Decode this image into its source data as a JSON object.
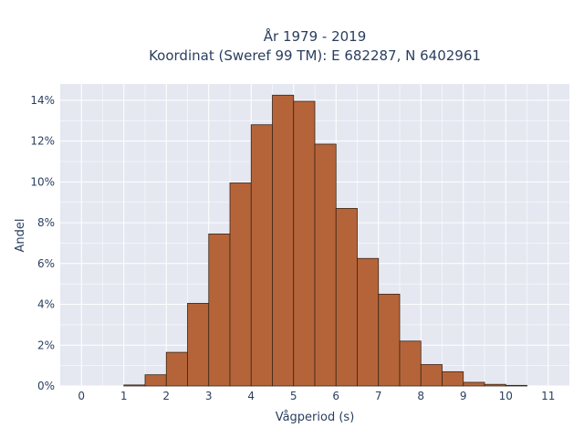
{
  "chart_data": {
    "type": "bar",
    "title_line1": "År 1979 - 2019",
    "title_line2": "Koordinat (Sweref 99 TM): E 682287, N 6402961",
    "xlabel": "Vågperiod (s)",
    "ylabel": "Andel",
    "bin_width": 0.5,
    "xlim": [
      -0.5,
      11.5
    ],
    "ylim": [
      0,
      14.8
    ],
    "x_ticks": [
      0,
      1,
      2,
      3,
      4,
      5,
      6,
      7,
      8,
      9,
      10,
      11
    ],
    "x_tick_labels": [
      "0",
      "1",
      "2",
      "3",
      "4",
      "5",
      "6",
      "7",
      "8",
      "9",
      "10",
      "11"
    ],
    "y_ticks": [
      0,
      2,
      4,
      6,
      8,
      10,
      12,
      14
    ],
    "y_tick_labels": [
      "0%",
      "2%",
      "4%",
      "6%",
      "8%",
      "10%",
      "12%",
      "14%"
    ],
    "grid": true,
    "bins": [
      {
        "start": 1.0,
        "value": 0.05
      },
      {
        "start": 1.5,
        "value": 0.55
      },
      {
        "start": 2.0,
        "value": 1.65
      },
      {
        "start": 2.5,
        "value": 4.05
      },
      {
        "start": 3.0,
        "value": 7.45
      },
      {
        "start": 3.5,
        "value": 9.95
      },
      {
        "start": 4.0,
        "value": 12.8
      },
      {
        "start": 4.5,
        "value": 14.25
      },
      {
        "start": 5.0,
        "value": 13.95
      },
      {
        "start": 5.5,
        "value": 11.85
      },
      {
        "start": 6.0,
        "value": 8.7
      },
      {
        "start": 6.5,
        "value": 6.25
      },
      {
        "start": 7.0,
        "value": 4.5
      },
      {
        "start": 7.5,
        "value": 2.2
      },
      {
        "start": 8.0,
        "value": 1.05
      },
      {
        "start": 8.5,
        "value": 0.7
      },
      {
        "start": 9.0,
        "value": 0.18
      },
      {
        "start": 9.5,
        "value": 0.08
      },
      {
        "start": 10.0,
        "value": 0.03
      }
    ],
    "colors": {
      "bar_fill": "#b5643a",
      "bar_stroke": "#3b2516",
      "plot_bg": "#e5e8f1",
      "grid": "#ffffff"
    }
  }
}
